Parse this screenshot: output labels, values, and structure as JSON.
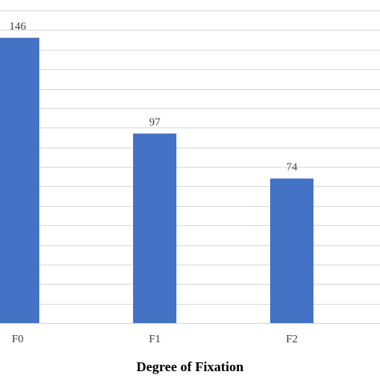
{
  "chart_data": {
    "type": "bar",
    "categories": [
      "F0",
      "F1",
      "F2"
    ],
    "values": [
      146,
      97,
      74
    ],
    "data_labels": [
      "146",
      "97",
      "74"
    ],
    "title": "",
    "xlabel": "Degree of Fixation",
    "ylabel": "",
    "ylim": [
      0,
      160
    ],
    "grid": true,
    "legend": "none",
    "colors": {
      "bar": "#4472c4",
      "grid": "#d9d9d9",
      "text": "#404040"
    }
  }
}
